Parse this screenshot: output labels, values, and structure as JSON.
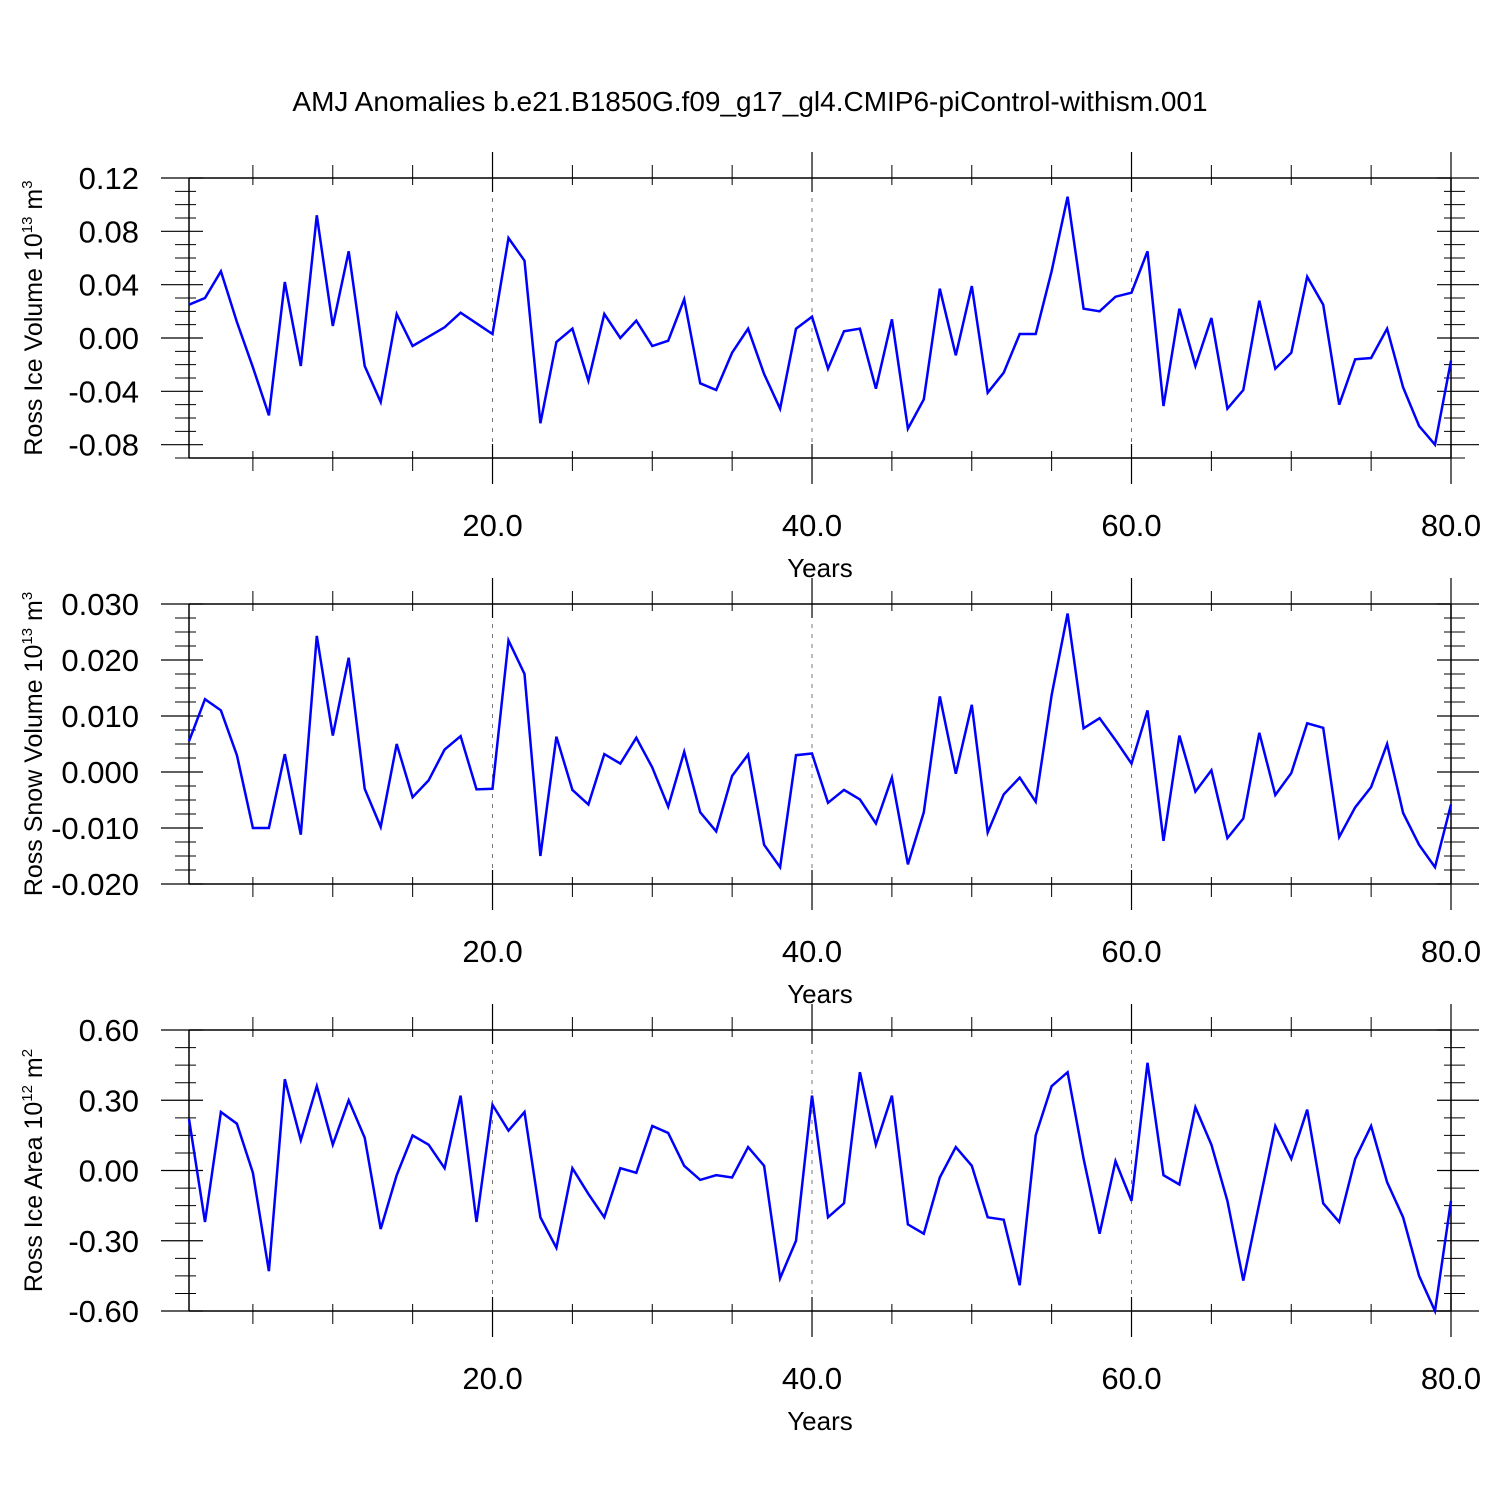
{
  "title": "AMJ Anomalies b.e21.B1850G.f09_g17_gl4.CMIP6-piControl-withism.001",
  "colors": {
    "line": "#0000ff",
    "axis": "#000000",
    "grid": "#777777"
  },
  "chart_data": [
    {
      "type": "line",
      "ylabel": {
        "main": "Ross Ice Volume 10",
        "sup": "13",
        "unit": " m",
        "unit_sup": "3"
      },
      "xlabel": "Years",
      "xlim": [
        1,
        80
      ],
      "ylim": [
        -0.09,
        0.12
      ],
      "yticks": [
        0.12,
        0.08,
        0.04,
        0.0,
        -0.04,
        -0.08
      ],
      "ytick_labels": [
        "0.12",
        "0.08",
        "0.04",
        "0.00",
        "-0.04",
        "-0.08"
      ],
      "xticks": [
        20,
        40,
        60,
        80
      ],
      "xtick_labels": [
        "20.0",
        "40.0",
        "60.0",
        "80.0"
      ],
      "grid_x": [
        20,
        40,
        60
      ],
      "series": [
        {
          "x": [
            1,
            2,
            3,
            4,
            5,
            6,
            7,
            8,
            9,
            10,
            11,
            12,
            13,
            14,
            15,
            16,
            17,
            18,
            19,
            20,
            21,
            22,
            23,
            24,
            25,
            26,
            27,
            28,
            29,
            30,
            31,
            32,
            33,
            34,
            35,
            36,
            37,
            38,
            39,
            40,
            41,
            42,
            43,
            44,
            45,
            46,
            47,
            48,
            49,
            50,
            51,
            52,
            53,
            54,
            55,
            56,
            57,
            58,
            59,
            60,
            61,
            62,
            63,
            64,
            65,
            66,
            67,
            68,
            69,
            70,
            71,
            72,
            73,
            74,
            75,
            76,
            77,
            78,
            79,
            80
          ],
          "values": [
            0.025,
            0.03,
            0.05,
            0.012,
            -0.022,
            -0.058,
            0.042,
            -0.021,
            0.092,
            0.009,
            0.065,
            -0.021,
            -0.048,
            0.018,
            -0.006,
            0.001,
            0.008,
            0.019,
            0.011,
            0.003,
            0.075,
            0.058,
            -0.064,
            -0.003,
            0.007,
            -0.032,
            0.018,
            0.0,
            0.013,
            -0.006,
            -0.002,
            0.029,
            -0.034,
            -0.039,
            -0.011,
            0.007,
            -0.027,
            -0.053,
            0.007,
            0.016,
            -0.023,
            0.005,
            0.007,
            -0.038,
            0.014,
            -0.068,
            -0.046,
            0.037,
            -0.013,
            0.039,
            -0.041,
            -0.026,
            0.003,
            0.003,
            0.05,
            0.106,
            0.022,
            0.02,
            0.031,
            0.034,
            0.065,
            -0.051,
            0.022,
            -0.021,
            0.015,
            -0.053,
            -0.039,
            0.028,
            -0.023,
            -0.011,
            0.046,
            0.025,
            -0.05,
            -0.016,
            -0.015,
            0.007,
            -0.037,
            -0.066,
            -0.08,
            -0.017
          ]
        }
      ]
    },
    {
      "type": "line",
      "ylabel": {
        "main": "Ross Snow Volume 10",
        "sup": "13",
        "unit": " m",
        "unit_sup": "3"
      },
      "xlabel": "Years",
      "xlim": [
        1,
        80
      ],
      "ylim": [
        -0.02,
        0.03
      ],
      "yticks": [
        0.03,
        0.02,
        0.01,
        0.0,
        -0.01,
        -0.02
      ],
      "ytick_labels": [
        "0.030",
        "0.020",
        "0.010",
        "0.000",
        "-0.010",
        "-0.020"
      ],
      "xticks": [
        20,
        40,
        60,
        80
      ],
      "xtick_labels": [
        "20.0",
        "40.0",
        "60.0",
        "80.0"
      ],
      "grid_x": [
        20,
        40,
        60
      ],
      "series": [
        {
          "x": [
            1,
            2,
            3,
            4,
            5,
            6,
            7,
            8,
            9,
            10,
            11,
            12,
            13,
            14,
            15,
            16,
            17,
            18,
            19,
            20,
            21,
            22,
            23,
            24,
            25,
            26,
            27,
            28,
            29,
            30,
            31,
            32,
            33,
            34,
            35,
            36,
            37,
            38,
            39,
            40,
            41,
            42,
            43,
            44,
            45,
            46,
            47,
            48,
            49,
            50,
            51,
            52,
            53,
            54,
            55,
            56,
            57,
            58,
            59,
            60,
            61,
            62,
            63,
            64,
            65,
            66,
            67,
            68,
            69,
            70,
            71,
            72,
            73,
            74,
            75,
            76,
            77,
            78,
            79,
            80
          ],
          "values": [
            0.0055,
            0.013,
            0.011,
            0.003,
            -0.01,
            -0.01,
            0.0032,
            -0.0112,
            0.0243,
            0.0065,
            0.0204,
            -0.003,
            -0.0098,
            0.005,
            -0.0045,
            -0.0015,
            0.004,
            0.0064,
            -0.0031,
            -0.003,
            0.0235,
            0.0175,
            -0.015,
            0.0063,
            -0.0032,
            -0.0058,
            0.0032,
            0.0015,
            0.0061,
            0.0008,
            -0.0062,
            0.0036,
            -0.0072,
            -0.0106,
            -0.0007,
            0.0031,
            -0.013,
            -0.017,
            0.003,
            0.0033,
            -0.0055,
            -0.0032,
            -0.0049,
            -0.0092,
            -0.001,
            -0.0165,
            -0.0072,
            0.0135,
            -0.0003,
            0.012,
            -0.0108,
            -0.004,
            -0.001,
            -0.0053,
            0.0137,
            0.0283,
            0.0078,
            0.0096,
            0.0057,
            0.0015,
            0.011,
            -0.0123,
            0.0065,
            -0.0035,
            0.0003,
            -0.0118,
            -0.0083,
            0.007,
            -0.0041,
            -0.0002,
            0.0087,
            0.0079,
            -0.0116,
            -0.0063,
            -0.0027,
            0.005,
            -0.0073,
            -0.013,
            -0.017,
            -0.0058
          ]
        }
      ]
    },
    {
      "type": "line",
      "ylabel": {
        "main": "Ross Ice Area 10",
        "sup": "12",
        "unit": " m",
        "unit_sup": "2"
      },
      "xlabel": "Years",
      "xlim": [
        1,
        80
      ],
      "ylim": [
        -0.6,
        0.6
      ],
      "yticks": [
        0.6,
        0.3,
        0.0,
        -0.3,
        -0.6
      ],
      "ytick_labels": [
        "0.60",
        "0.30",
        "0.00",
        "-0.30",
        "-0.60"
      ],
      "xticks": [
        20,
        40,
        60,
        80
      ],
      "xtick_labels": [
        "20.0",
        "40.0",
        "60.0",
        "80.0"
      ],
      "grid_x": [
        20,
        40,
        60
      ],
      "series": [
        {
          "x": [
            1,
            2,
            3,
            4,
            5,
            6,
            7,
            8,
            9,
            10,
            11,
            12,
            13,
            14,
            15,
            16,
            17,
            18,
            19,
            20,
            21,
            22,
            23,
            24,
            25,
            26,
            27,
            28,
            29,
            30,
            31,
            32,
            33,
            34,
            35,
            36,
            37,
            38,
            39,
            40,
            41,
            42,
            43,
            44,
            45,
            46,
            47,
            48,
            49,
            50,
            51,
            52,
            53,
            54,
            55,
            56,
            57,
            58,
            59,
            60,
            61,
            62,
            63,
            64,
            65,
            66,
            67,
            68,
            69,
            70,
            71,
            72,
            73,
            74,
            75,
            76,
            77,
            78,
            79,
            80
          ],
          "values": [
            0.22,
            -0.22,
            0.25,
            0.2,
            -0.01,
            -0.43,
            0.39,
            0.13,
            0.36,
            0.11,
            0.3,
            0.14,
            -0.25,
            -0.02,
            0.15,
            0.11,
            0.01,
            0.32,
            -0.22,
            0.28,
            0.17,
            0.25,
            -0.2,
            -0.33,
            0.01,
            -0.1,
            -0.2,
            0.01,
            -0.01,
            0.19,
            0.16,
            0.02,
            -0.04,
            -0.02,
            -0.03,
            0.1,
            0.02,
            -0.46,
            -0.3,
            0.32,
            -0.2,
            -0.14,
            0.42,
            0.11,
            0.32,
            -0.23,
            -0.27,
            -0.03,
            0.1,
            0.02,
            -0.2,
            -0.21,
            -0.49,
            0.15,
            0.36,
            0.42,
            0.05,
            -0.27,
            0.04,
            -0.13,
            0.46,
            -0.02,
            -0.06,
            0.27,
            0.11,
            -0.13,
            -0.47,
            -0.14,
            0.19,
            0.05,
            0.26,
            -0.14,
            -0.22,
            0.05,
            0.19,
            -0.05,
            -0.2,
            -0.45,
            -0.6,
            -0.13
          ]
        }
      ]
    }
  ]
}
